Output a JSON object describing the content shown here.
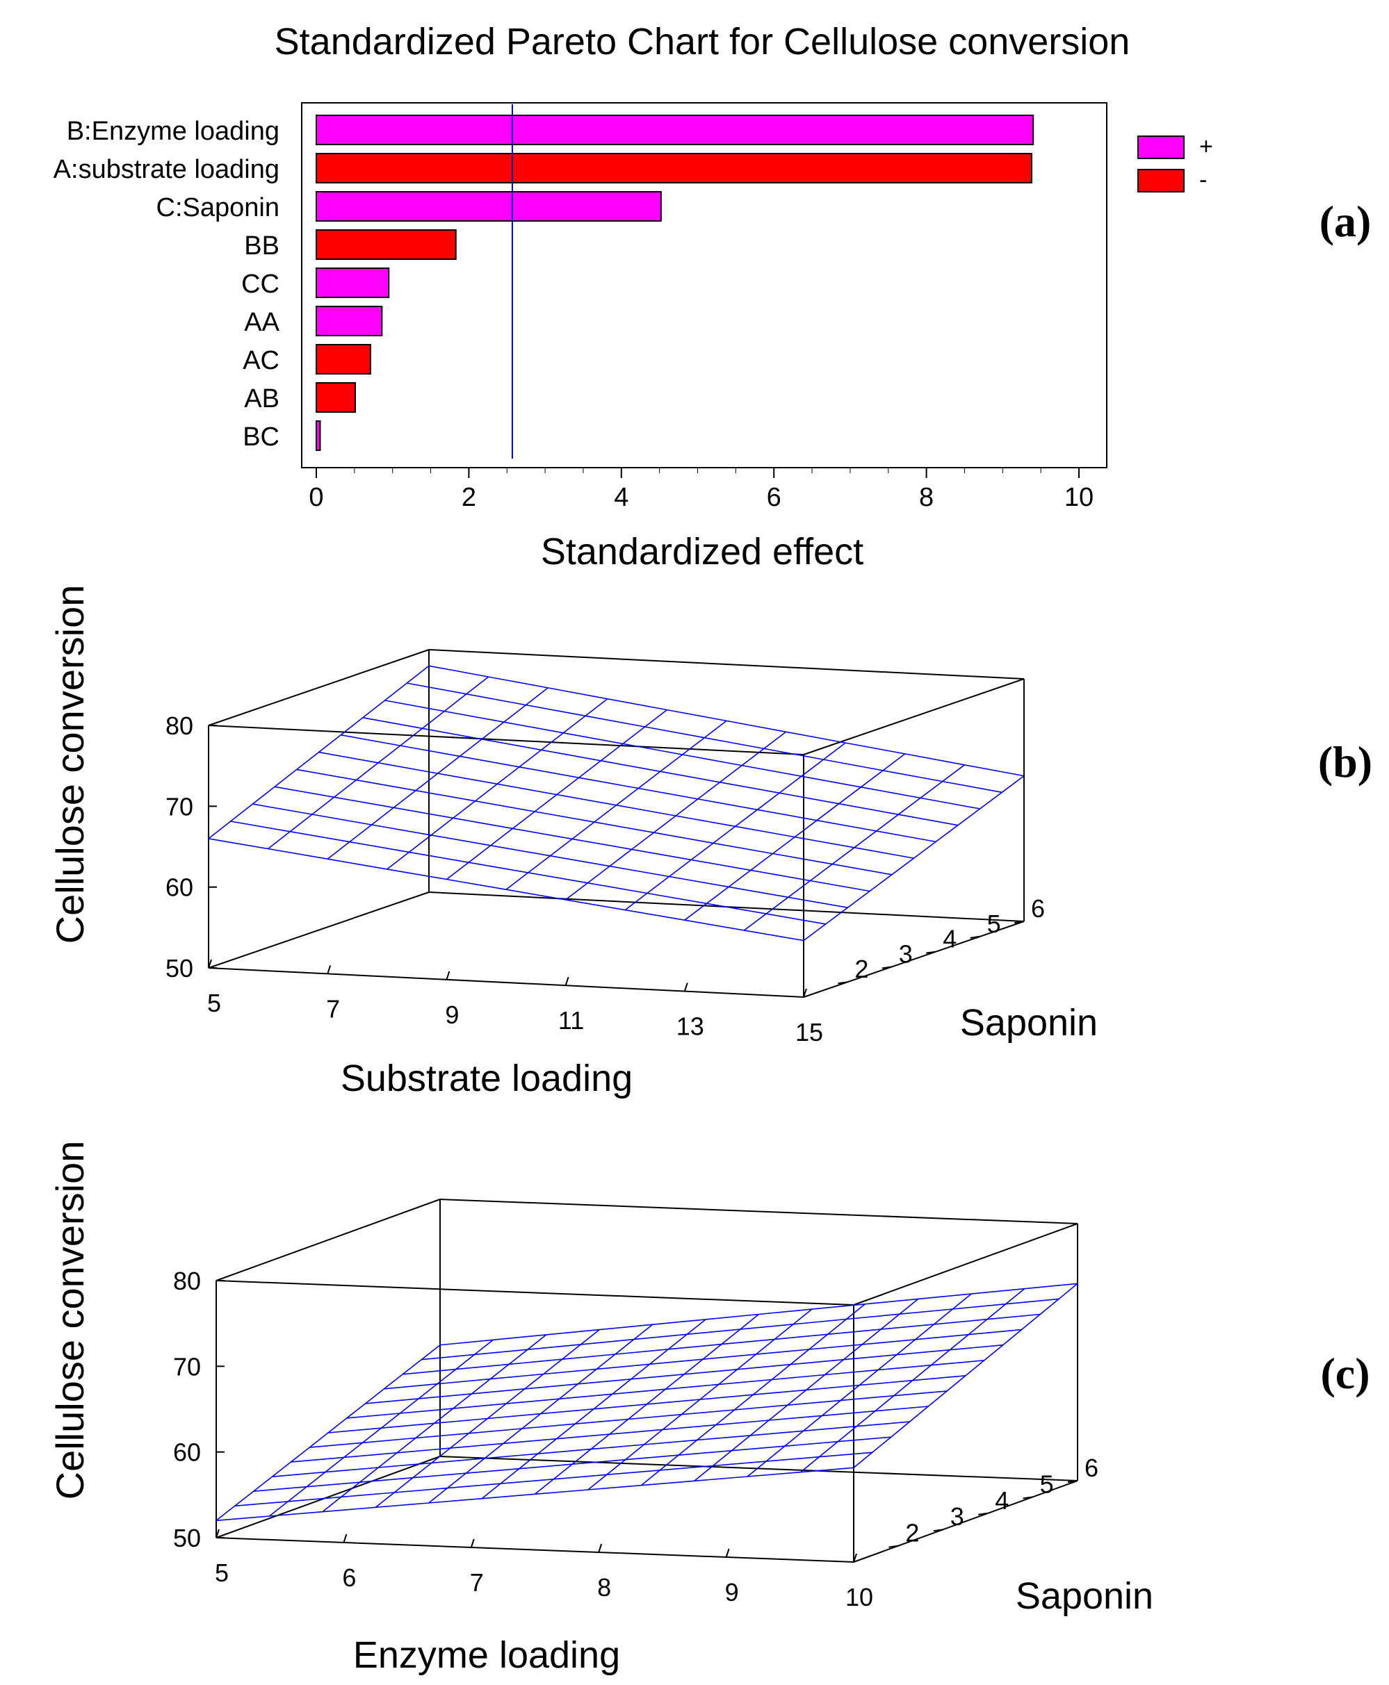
{
  "colors": {
    "positive": "#ff00ff",
    "negative": "#ff0000",
    "reference_line": "#0000cc",
    "mesh": "#0000ff",
    "axes": "#000000"
  },
  "chart_data": [
    {
      "type": "bar",
      "orientation": "horizontal",
      "panel_label": "(a)",
      "title": "Standardized Pareto Chart for Cellulose conversion",
      "xlabel": "Standardized effect",
      "ylabel": "",
      "xlim": [
        0,
        10
      ],
      "xticks": [
        0,
        2,
        4,
        6,
        8,
        10
      ],
      "grid": false,
      "legend": {
        "position": "top-right",
        "entries": [
          {
            "label": "+",
            "color": "#ff00ff"
          },
          {
            "label": "-",
            "color": "#ff0000"
          }
        ]
      },
      "categories": [
        "B:Enzyme loading",
        "A:substrate loading",
        "C:Saponin",
        "BB",
        "CC",
        "AA",
        "AC",
        "AB",
        "BC"
      ],
      "values": [
        9.4,
        9.38,
        4.52,
        1.83,
        0.95,
        0.86,
        0.71,
        0.51,
        0.05
      ],
      "signs": [
        "+",
        "-",
        "+",
        "-",
        "+",
        "+",
        "-",
        "-",
        "+"
      ],
      "reference_line": 2.57
    },
    {
      "type": "surface",
      "panel_label": "(b)",
      "xlabel": "Substrate loading",
      "ylabel": "Saponin",
      "zlabel": "Cellulose conversion",
      "xticks": [
        5,
        7,
        9,
        11,
        13,
        15
      ],
      "yticks": [
        2,
        3,
        4,
        5,
        6
      ],
      "zticks": [
        50,
        60,
        70,
        80
      ],
      "xlim": [
        5,
        15
      ],
      "ylim": [
        1,
        6
      ],
      "zlim": [
        50,
        80
      ],
      "surface_corners": [
        {
          "x": 5,
          "y": 1,
          "z": 66
        },
        {
          "x": 15,
          "y": 1,
          "z": 57
        },
        {
          "x": 5,
          "y": 6,
          "z": 78
        },
        {
          "x": 15,
          "y": 6,
          "z": 68
        }
      ]
    },
    {
      "type": "surface",
      "panel_label": "(c)",
      "xlabel": "Enzyme loading",
      "ylabel": "Saponin",
      "zlabel": "Cellulose conversion",
      "xticks": [
        5,
        6,
        7,
        8,
        9,
        10
      ],
      "yticks": [
        2,
        3,
        4,
        5,
        6
      ],
      "zticks": [
        50,
        60,
        70,
        80
      ],
      "xlim": [
        5,
        10
      ],
      "ylim": [
        1,
        6
      ],
      "zlim": [
        50,
        80
      ],
      "surface_corners": [
        {
          "x": 5,
          "y": 1,
          "z": 52
        },
        {
          "x": 10,
          "y": 1,
          "z": 61
        },
        {
          "x": 5,
          "y": 6,
          "z": 63
        },
        {
          "x": 10,
          "y": 6,
          "z": 73
        }
      ]
    }
  ]
}
